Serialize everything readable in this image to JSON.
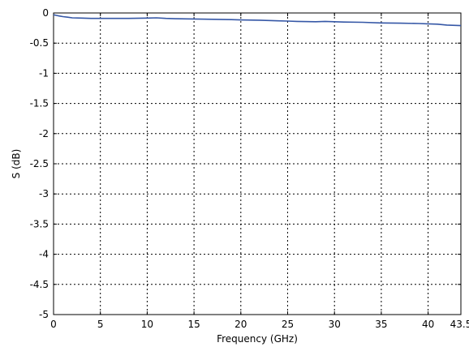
{
  "chart_data": {
    "type": "line",
    "title": "",
    "xlabel": "Frequency (GHz)",
    "ylabel": "S (dB)",
    "xlim": [
      0,
      43.5
    ],
    "ylim": [
      -5,
      0
    ],
    "xticks": [
      0,
      5,
      10,
      15,
      20,
      25,
      30,
      35,
      40,
      43.5
    ],
    "xtick_labels": [
      "0",
      "5",
      "10",
      "15",
      "20",
      "25",
      "30",
      "35",
      "40",
      "43.5"
    ],
    "yticks": [
      0,
      -0.5,
      -1,
      -1.5,
      -2,
      -2.5,
      -3,
      -3.5,
      -4,
      -4.5,
      -5
    ],
    "ytick_labels": [
      "0",
      "-0.5",
      "-1",
      "-1.5",
      "-2",
      "-2.5",
      "-3",
      "-3.5",
      "-4",
      "-4.5",
      "-5"
    ],
    "grid": true,
    "grid_style": "dotted",
    "series": [
      {
        "color": "#3557a6",
        "x": [
          0,
          0.3,
          0.6,
          1,
          1.5,
          2,
          3,
          4,
          5,
          6,
          8,
          10,
          11,
          12,
          13,
          15,
          17,
          19,
          20,
          22,
          24,
          25,
          26,
          28,
          29,
          30,
          31,
          33,
          35,
          37,
          39,
          40,
          41,
          42,
          43.5
        ],
        "y": [
          -0.03,
          -0.04,
          -0.05,
          -0.06,
          -0.07,
          -0.08,
          -0.085,
          -0.09,
          -0.09,
          -0.09,
          -0.09,
          -0.085,
          -0.08,
          -0.09,
          -0.095,
          -0.1,
          -0.105,
          -0.11,
          -0.115,
          -0.12,
          -0.13,
          -0.135,
          -0.14,
          -0.145,
          -0.14,
          -0.145,
          -0.15,
          -0.155,
          -0.165,
          -0.17,
          -0.175,
          -0.18,
          -0.185,
          -0.2,
          -0.21
        ]
      }
    ]
  }
}
